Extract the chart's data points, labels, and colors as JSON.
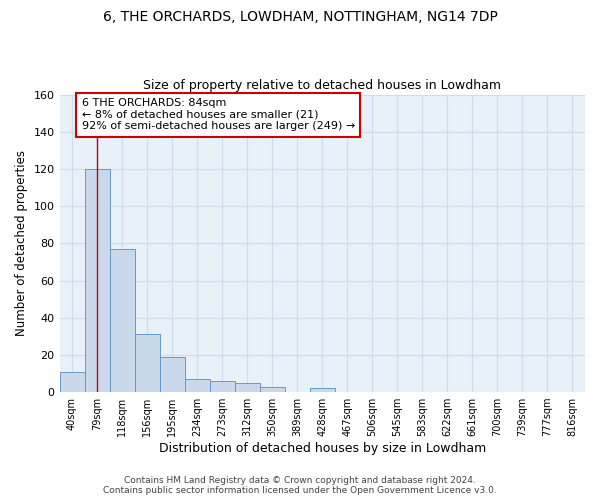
{
  "title": "6, THE ORCHARDS, LOWDHAM, NOTTINGHAM, NG14 7DP",
  "subtitle": "Size of property relative to detached houses in Lowdham",
  "xlabel": "Distribution of detached houses by size in Lowdham",
  "ylabel": "Number of detached properties",
  "bin_labels": [
    "40sqm",
    "79sqm",
    "118sqm",
    "156sqm",
    "195sqm",
    "234sqm",
    "273sqm",
    "312sqm",
    "350sqm",
    "389sqm",
    "428sqm",
    "467sqm",
    "506sqm",
    "545sqm",
    "583sqm",
    "622sqm",
    "661sqm",
    "700sqm",
    "739sqm",
    "777sqm",
    "816sqm"
  ],
  "bar_values": [
    11,
    120,
    77,
    31,
    19,
    7,
    6,
    5,
    3,
    0,
    2,
    0,
    0,
    0,
    0,
    0,
    0,
    0,
    0,
    0,
    0
  ],
  "bar_color": "#c9d9eb",
  "bar_edge_color": "#6699cc",
  "grid_color": "#d0dcea",
  "background_color": "#e8f0f8",
  "vline_x": 1,
  "vline_color": "#cc0000",
  "annotation_line1": "6 THE ORCHARDS: 84sqm",
  "annotation_line2": "← 8% of detached houses are smaller (21)",
  "annotation_line3": "92% of semi-detached houses are larger (249) →",
  "annotation_box_color": "#ffffff",
  "annotation_box_edge": "#cc0000",
  "ylim": [
    0,
    160
  ],
  "yticks": [
    0,
    20,
    40,
    60,
    80,
    100,
    120,
    140,
    160
  ],
  "footer": "Contains HM Land Registry data © Crown copyright and database right 2024.\nContains public sector information licensed under the Open Government Licence v3.0."
}
